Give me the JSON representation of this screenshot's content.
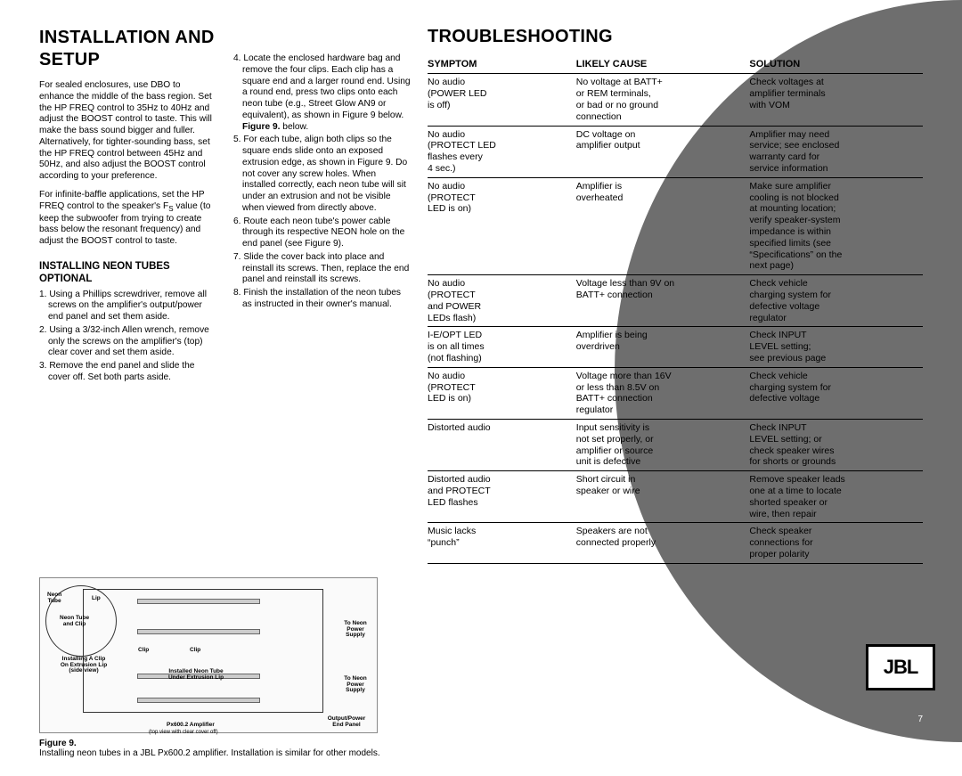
{
  "install": {
    "title": "INSTALLATION AND SETUP",
    "p1": "For sealed enclosures, use DBO to enhance the middle of the bass region. Set the HP FREQ control to 35Hz to 40Hz and adjust the BOOST control to taste. This will make the bass sound bigger and fuller. Alternatively, for tighter-sounding bass, set the HP FREQ control between 45Hz and 50Hz, and also adjust the BOOST control according to your preference.",
    "p2a": "For infinite-baffle applications, set the HP FREQ control to the speaker's F",
    "p2b": " value (to keep the subwoofer from trying to create bass below the resonant frequency) and adjust the BOOST control to taste.",
    "subhead": "INSTALLING NEON TUBES OPTIONAL",
    "steps_left": [
      "1. Using a Phillips screwdriver, remove all screws on the amplifier's output/power end panel and set them aside.",
      "2. Using a 3/32-inch Allen wrench, remove only the screws on the amplifier's (top) clear cover and set them aside.",
      "3. Remove the end panel and slide the cover off. Set both parts aside."
    ],
    "steps_mid": [
      "4. Locate the enclosed hardware bag and remove the four clips. Each clip has a square end and a larger round end. Using a round end, press two clips onto each neon tube (e.g., Street Glow AN9 or equivalent), as shown in Figure 9 below.",
      "5. For each tube, align both clips so the square ends slide onto an exposed extrusion edge, as shown in Figure 9. Do not cover any screw holes. When installed correctly, each neon tube will sit under an extrusion and not be visible when viewed from directly above.",
      "6. Route each neon tube's power cable through its respective NEON hole on the end panel (see Figure 9).",
      "7. Slide the cover back into place and reinstall its screws. Then, replace the end panel and reinstall its screws.",
      "8. Finish the installation of the neon tubes as instructed in their owner's manual."
    ],
    "fig_label": "Figure 9.",
    "fig_text": "Installing neon tubes in a JBL Px600.2 amplifier. Installation is similar for other models.",
    "diag": {
      "amp_label": "Px600.2 Amplifier",
      "amp_sub": "(top view with clear cover off)",
      "panel_label": "Output/Power\nEnd Panel",
      "neon_label": "To Neon\nPower\nSupply",
      "clip_a": "Installing A Clip\nOn Extrusion Lip\n(side view)",
      "clip": "Clip",
      "installed": "Installed Neon Tube\nUnder Extrusion Lip",
      "tube_label": "Neon Tube\nand Clip",
      "lip": "Lip",
      "neon_tube": "Neon\nTube"
    }
  },
  "trouble": {
    "title": "TROUBLESHOOTING",
    "headers": [
      "SYMPTOM",
      "LIKELY CAUSE",
      "SOLUTION"
    ],
    "rows": [
      [
        "No audio\n(POWER LED\nis off)",
        "No voltage at BATT+\nor REM terminals,\nor bad or no ground\nconnection",
        "Check voltages at\namplifier terminals\nwith VOM"
      ],
      [
        "No audio\n(PROTECT LED\nflashes every\n4 sec.)",
        "DC voltage on\namplifier output",
        "Amplifier may need\nservice; see enclosed\nwarranty card for\nservice information"
      ],
      [
        "No audio\n(PROTECT\nLED is on)",
        "Amplifier is\noverheated",
        "Make sure amplifier\ncooling is not blocked\nat mounting location;\nverify speaker-system\nimpedance is within\nspecified limits (see\n“Specifications” on the\nnext page)"
      ],
      [
        "No audio\n(PROTECT\nand POWER\nLEDs flash)",
        "Voltage less than 9V on\nBATT+ connection",
        "Check vehicle\ncharging system for\ndefective voltage\nregulator"
      ],
      [
        "I-E/OPT LED\nis on all times\n(not flashing)",
        "Amplifier is being\noverdriven",
        "Check INPUT\nLEVEL setting;\nsee previous page"
      ],
      [
        "No audio\n(PROTECT\nLED is on)",
        "Voltage more than 16V\nor less than 8.5V on\nBATT+ connection\nregulator",
        "Check vehicle\ncharging system for\ndefective voltage"
      ],
      [
        "Distorted audio",
        "Input sensitivity is\nnot set properly, or\namplifier or source\nunit is defective",
        "Check INPUT\nLEVEL setting; or\ncheck speaker wires\nfor shorts or grounds"
      ],
      [
        "Distorted audio\nand PROTECT\nLED flashes",
        "Short circuit in\nspeaker or wire",
        "Remove speaker leads\none at a time to locate\nshorted speaker or\nwire, then repair"
      ],
      [
        "Music lacks\n“punch”",
        "Speakers are not\nconnected properly",
        "Check speaker\nconnections for\nproper polarity"
      ]
    ]
  },
  "page_number": "7",
  "logo_text": "JBL"
}
